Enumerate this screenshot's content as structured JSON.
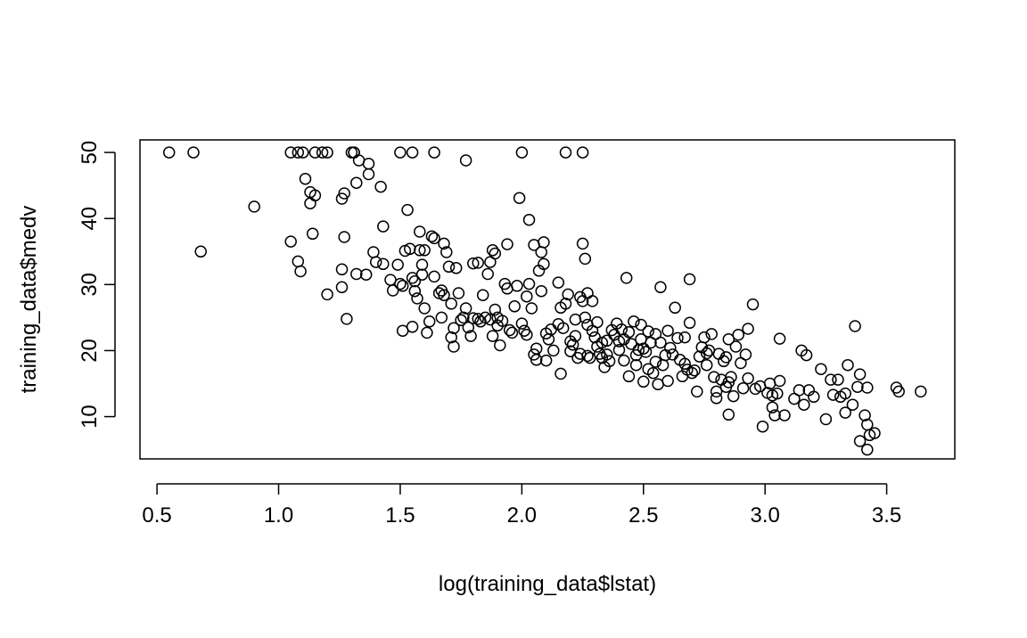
{
  "chart_data": {
    "type": "scatter",
    "title": "",
    "xlabel": "log(training_data$lstat)",
    "ylabel": "training_data$medv",
    "xlim": [
      0.43,
      3.78
    ],
    "ylim": [
      3.6,
      51.9
    ],
    "xticks": [
      0.5,
      1.0,
      1.5,
      2.0,
      2.5,
      3.0,
      3.5
    ],
    "xtick_labels": [
      "0.5",
      "1.0",
      "1.5",
      "2.0",
      "2.5",
      "3.0",
      "3.5"
    ],
    "yticks": [
      10,
      20,
      30,
      40,
      50
    ],
    "ytick_labels": [
      "10",
      "20",
      "30",
      "40",
      "50"
    ],
    "marker": "open-circle",
    "grid": false,
    "legend": "none",
    "points": [
      [
        0.55,
        50.0
      ],
      [
        0.65,
        50.0
      ],
      [
        1.05,
        50.0
      ],
      [
        1.08,
        50.0
      ],
      [
        1.1,
        50.0
      ],
      [
        1.15,
        50.0
      ],
      [
        1.18,
        50.0
      ],
      [
        1.2,
        50.0
      ],
      [
        1.3,
        50.0
      ],
      [
        1.31,
        50.0
      ],
      [
        1.5,
        50.0
      ],
      [
        1.55,
        50.0
      ],
      [
        1.64,
        50.0
      ],
      [
        2.0,
        50.0
      ],
      [
        2.18,
        50.0
      ],
      [
        2.25,
        50.0
      ],
      [
        0.68,
        35.0
      ],
      [
        0.9,
        41.8
      ],
      [
        1.05,
        36.5
      ],
      [
        1.08,
        33.5
      ],
      [
        1.09,
        32.0
      ],
      [
        1.11,
        46.0
      ],
      [
        1.13,
        44.0
      ],
      [
        1.13,
        42.3
      ],
      [
        1.15,
        43.5
      ],
      [
        1.14,
        37.7
      ],
      [
        1.2,
        28.5
      ],
      [
        1.26,
        43.0
      ],
      [
        1.27,
        43.8
      ],
      [
        1.27,
        37.2
      ],
      [
        1.26,
        32.3
      ],
      [
        1.26,
        29.6
      ],
      [
        1.28,
        24.8
      ],
      [
        1.31,
        50.0
      ],
      [
        1.32,
        45.4
      ],
      [
        1.33,
        48.8
      ],
      [
        1.37,
        48.3
      ],
      [
        1.37,
        46.7
      ],
      [
        1.39,
        34.9
      ],
      [
        1.4,
        33.4
      ],
      [
        1.42,
        44.8
      ],
      [
        1.43,
        33.1
      ],
      [
        1.43,
        38.8
      ],
      [
        1.36,
        31.5
      ],
      [
        1.32,
        31.6
      ],
      [
        1.46,
        30.7
      ],
      [
        1.47,
        29.1
      ],
      [
        1.49,
        33.0
      ],
      [
        1.5,
        30.1
      ],
      [
        1.51,
        29.8
      ],
      [
        1.52,
        35.1
      ],
      [
        1.53,
        41.3
      ],
      [
        1.54,
        35.4
      ],
      [
        1.55,
        31.0
      ],
      [
        1.55,
        23.6
      ],
      [
        1.51,
        23.0
      ],
      [
        1.56,
        30.5
      ],
      [
        1.56,
        29.0
      ],
      [
        1.57,
        27.9
      ],
      [
        1.58,
        35.2
      ],
      [
        1.58,
        38.0
      ],
      [
        1.6,
        35.2
      ],
      [
        1.59,
        33.0
      ],
      [
        1.59,
        31.5
      ],
      [
        1.6,
        26.4
      ],
      [
        1.61,
        22.7
      ],
      [
        1.62,
        24.4
      ],
      [
        1.63,
        37.3
      ],
      [
        1.64,
        37.0
      ],
      [
        1.64,
        31.2
      ],
      [
        1.66,
        28.7
      ],
      [
        1.67,
        29.1
      ],
      [
        1.67,
        25.0
      ],
      [
        1.68,
        28.4
      ],
      [
        1.68,
        36.2
      ],
      [
        1.69,
        34.9
      ],
      [
        1.7,
        32.7
      ],
      [
        1.71,
        27.1
      ],
      [
        1.71,
        22.0
      ],
      [
        1.72,
        23.4
      ],
      [
        1.72,
        20.6
      ],
      [
        1.73,
        32.5
      ],
      [
        1.74,
        28.7
      ],
      [
        1.75,
        24.6
      ],
      [
        1.76,
        25.0
      ],
      [
        1.77,
        26.4
      ],
      [
        1.77,
        48.8
      ],
      [
        1.78,
        23.5
      ],
      [
        1.79,
        22.2
      ],
      [
        1.8,
        24.9
      ],
      [
        1.8,
        33.2
      ],
      [
        1.82,
        24.8
      ],
      [
        1.82,
        33.3
      ],
      [
        1.83,
        24.4
      ],
      [
        1.84,
        28.4
      ],
      [
        1.85,
        25.0
      ],
      [
        1.86,
        31.6
      ],
      [
        1.87,
        33.4
      ],
      [
        1.88,
        35.2
      ],
      [
        1.89,
        34.7
      ],
      [
        1.87,
        24.7
      ],
      [
        1.88,
        22.2
      ],
      [
        1.89,
        26.2
      ],
      [
        1.9,
        25.0
      ],
      [
        1.9,
        23.8
      ],
      [
        1.91,
        20.8
      ],
      [
        1.92,
        24.5
      ],
      [
        1.93,
        30.1
      ],
      [
        1.94,
        29.4
      ],
      [
        1.94,
        36.1
      ],
      [
        1.95,
        23.1
      ],
      [
        1.96,
        22.7
      ],
      [
        1.97,
        26.7
      ],
      [
        1.98,
        29.8
      ],
      [
        1.99,
        43.1
      ],
      [
        2.0,
        24.1
      ],
      [
        2.01,
        23.0
      ],
      [
        2.02,
        22.4
      ],
      [
        2.02,
        28.2
      ],
      [
        2.03,
        30.1
      ],
      [
        2.03,
        39.8
      ],
      [
        2.04,
        26.4
      ],
      [
        2.05,
        36.0
      ],
      [
        2.05,
        19.4
      ],
      [
        2.06,
        20.3
      ],
      [
        2.06,
        18.6
      ],
      [
        2.07,
        32.1
      ],
      [
        2.08,
        29.0
      ],
      [
        2.08,
        34.9
      ],
      [
        2.09,
        36.4
      ],
      [
        2.09,
        33.1
      ],
      [
        2.1,
        22.6
      ],
      [
        2.11,
        21.7
      ],
      [
        2.1,
        18.5
      ],
      [
        2.12,
        23.2
      ],
      [
        2.13,
        20.0
      ],
      [
        2.15,
        24.0
      ],
      [
        2.15,
        30.3
      ],
      [
        2.16,
        26.5
      ],
      [
        2.16,
        16.5
      ],
      [
        2.17,
        23.4
      ],
      [
        2.18,
        27.1
      ],
      [
        2.19,
        28.5
      ],
      [
        2.2,
        21.4
      ],
      [
        2.2,
        19.9
      ],
      [
        2.21,
        20.9
      ],
      [
        2.22,
        24.7
      ],
      [
        2.22,
        22.2
      ],
      [
        2.23,
        18.9
      ],
      [
        2.24,
        19.5
      ],
      [
        2.24,
        28.1
      ],
      [
        2.25,
        36.2
      ],
      [
        2.25,
        27.5
      ],
      [
        2.26,
        33.9
      ],
      [
        2.26,
        25.0
      ],
      [
        2.27,
        28.7
      ],
      [
        2.27,
        23.9
      ],
      [
        2.27,
        19.2
      ],
      [
        2.28,
        18.9
      ],
      [
        2.29,
        23.0
      ],
      [
        2.29,
        27.5
      ],
      [
        2.3,
        22.0
      ],
      [
        2.31,
        20.6
      ],
      [
        2.31,
        24.3
      ],
      [
        2.32,
        19.5
      ],
      [
        2.33,
        21.2
      ],
      [
        2.33,
        18.9
      ],
      [
        2.34,
        17.5
      ],
      [
        2.35,
        19.4
      ],
      [
        2.35,
        21.5
      ],
      [
        2.36,
        18.4
      ],
      [
        2.37,
        23.1
      ],
      [
        2.38,
        22.4
      ],
      [
        2.39,
        24.1
      ],
      [
        2.4,
        21.4
      ],
      [
        2.4,
        20.1
      ],
      [
        2.41,
        23.2
      ],
      [
        2.42,
        18.5
      ],
      [
        2.42,
        21.7
      ],
      [
        2.43,
        31.0
      ],
      [
        2.44,
        22.8
      ],
      [
        2.44,
        16.1
      ],
      [
        2.45,
        21.0
      ],
      [
        2.46,
        24.4
      ],
      [
        2.47,
        17.8
      ],
      [
        2.47,
        19.3
      ],
      [
        2.48,
        20.1
      ],
      [
        2.49,
        21.7
      ],
      [
        2.49,
        23.9
      ],
      [
        2.5,
        20.3
      ],
      [
        2.5,
        15.3
      ],
      [
        2.51,
        19.8
      ],
      [
        2.52,
        22.9
      ],
      [
        2.52,
        17.2
      ],
      [
        2.53,
        21.2
      ],
      [
        2.54,
        16.6
      ],
      [
        2.55,
        22.5
      ],
      [
        2.55,
        18.3
      ],
      [
        2.56,
        14.9
      ],
      [
        2.57,
        21.2
      ],
      [
        2.57,
        29.6
      ],
      [
        2.58,
        17.8
      ],
      [
        2.59,
        19.3
      ],
      [
        2.6,
        23.0
      ],
      [
        2.6,
        15.4
      ],
      [
        2.61,
        20.4
      ],
      [
        2.62,
        19.4
      ],
      [
        2.63,
        26.5
      ],
      [
        2.64,
        21.9
      ],
      [
        2.65,
        18.6
      ],
      [
        2.66,
        16.1
      ],
      [
        2.67,
        22.0
      ],
      [
        2.67,
        18.0
      ],
      [
        2.68,
        17.1
      ],
      [
        2.69,
        24.2
      ],
      [
        2.69,
        30.8
      ],
      [
        2.7,
        16.6
      ],
      [
        2.71,
        17.0
      ],
      [
        2.72,
        13.8
      ],
      [
        2.73,
        19.1
      ],
      [
        2.74,
        20.5
      ],
      [
        2.75,
        22.0
      ],
      [
        2.76,
        17.8
      ],
      [
        2.76,
        19.6
      ],
      [
        2.77,
        20.0
      ],
      [
        2.78,
        22.5
      ],
      [
        2.79,
        16.0
      ],
      [
        2.8,
        12.8
      ],
      [
        2.8,
        13.8
      ],
      [
        2.81,
        19.5
      ],
      [
        2.82,
        15.6
      ],
      [
        2.83,
        18.4
      ],
      [
        2.84,
        19.0
      ],
      [
        2.84,
        14.5
      ],
      [
        2.85,
        15.2
      ],
      [
        2.85,
        10.3
      ],
      [
        2.85,
        21.7
      ],
      [
        2.86,
        16.0
      ],
      [
        2.87,
        13.1
      ],
      [
        2.88,
        20.6
      ],
      [
        2.89,
        22.4
      ],
      [
        2.9,
        18.1
      ],
      [
        2.91,
        14.3
      ],
      [
        2.92,
        19.4
      ],
      [
        2.93,
        15.8
      ],
      [
        2.93,
        23.3
      ],
      [
        2.95,
        27.0
      ],
      [
        2.96,
        14.2
      ],
      [
        2.98,
        14.6
      ],
      [
        2.99,
        8.5
      ],
      [
        3.01,
        13.6
      ],
      [
        3.02,
        15.0
      ],
      [
        3.03,
        13.2
      ],
      [
        3.03,
        11.4
      ],
      [
        3.04,
        10.2
      ],
      [
        3.05,
        13.5
      ],
      [
        3.06,
        21.8
      ],
      [
        3.06,
        15.4
      ],
      [
        3.08,
        10.2
      ],
      [
        3.12,
        12.7
      ],
      [
        3.14,
        14.0
      ],
      [
        3.15,
        20.0
      ],
      [
        3.16,
        11.8
      ],
      [
        3.17,
        19.3
      ],
      [
        3.18,
        14.0
      ],
      [
        3.2,
        13.0
      ],
      [
        3.23,
        17.2
      ],
      [
        3.25,
        9.6
      ],
      [
        3.27,
        15.6
      ],
      [
        3.28,
        13.3
      ],
      [
        3.3,
        15.6
      ],
      [
        3.31,
        13.0
      ],
      [
        3.33,
        13.5
      ],
      [
        3.33,
        10.6
      ],
      [
        3.34,
        17.8
      ],
      [
        3.36,
        11.8
      ],
      [
        3.37,
        23.7
      ],
      [
        3.38,
        14.5
      ],
      [
        3.39,
        16.4
      ],
      [
        3.39,
        6.3
      ],
      [
        3.41,
        10.2
      ],
      [
        3.42,
        8.8
      ],
      [
        3.42,
        14.4
      ],
      [
        3.42,
        5.0
      ],
      [
        3.43,
        7.2
      ],
      [
        3.45,
        7.5
      ],
      [
        3.54,
        14.4
      ],
      [
        3.55,
        13.8
      ],
      [
        3.64,
        13.8
      ]
    ]
  }
}
